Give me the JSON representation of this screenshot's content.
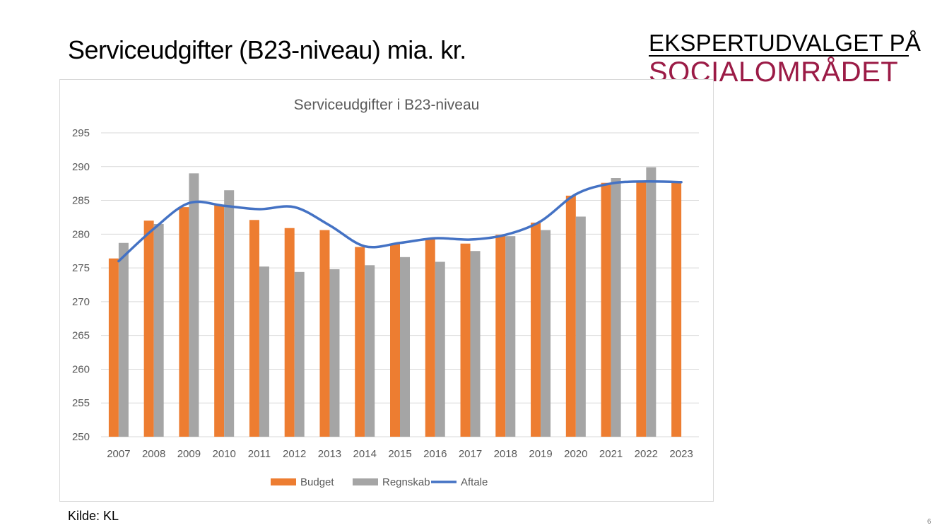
{
  "slide": {
    "title": "Serviceudgifter (B23-niveau) mia. kr.",
    "source": "Kilde: KL",
    "page_number": "6"
  },
  "logo": {
    "line1": "EKSPERTUDVALGET PÅ",
    "line2": "SOCIALOMRÅDET",
    "line1_color": "#000000",
    "line2_color": "#9b1b46"
  },
  "chart_data": {
    "type": "bar",
    "title": "Serviceudgifter i B23-niveau",
    "xlabel": "",
    "ylabel": "",
    "ylim": [
      250,
      295
    ],
    "yticks": [
      250,
      255,
      260,
      265,
      270,
      275,
      280,
      285,
      290,
      295
    ],
    "grid": true,
    "legend_position": "bottom",
    "categories": [
      "2007",
      "2008",
      "2009",
      "2010",
      "2011",
      "2012",
      "2013",
      "2014",
      "2015",
      "2016",
      "2017",
      "2018",
      "2019",
      "2020",
      "2021",
      "2022",
      "2023"
    ],
    "series": [
      {
        "name": "Budget",
        "type": "bar",
        "color": "#ed7d31",
        "values": [
          276.4,
          282.0,
          284.0,
          284.3,
          282.1,
          280.9,
          280.6,
          278.1,
          278.6,
          279.3,
          278.6,
          279.9,
          281.7,
          285.7,
          287.6,
          287.7,
          287.6
        ]
      },
      {
        "name": "Regnskab",
        "type": "bar",
        "color": "#a5a5a5",
        "values": [
          278.7,
          281.5,
          289.0,
          286.5,
          275.2,
          274.4,
          274.8,
          275.4,
          276.6,
          275.9,
          277.5,
          279.7,
          280.6,
          282.6,
          288.3,
          289.9,
          null
        ]
      },
      {
        "name": "Aftale",
        "type": "line",
        "color": "#4472c4",
        "values": [
          276.0,
          280.8,
          284.6,
          284.2,
          283.7,
          284.0,
          281.3,
          278.2,
          278.7,
          279.4,
          279.2,
          279.9,
          281.9,
          285.9,
          287.5,
          287.8,
          287.7
        ]
      }
    ]
  }
}
